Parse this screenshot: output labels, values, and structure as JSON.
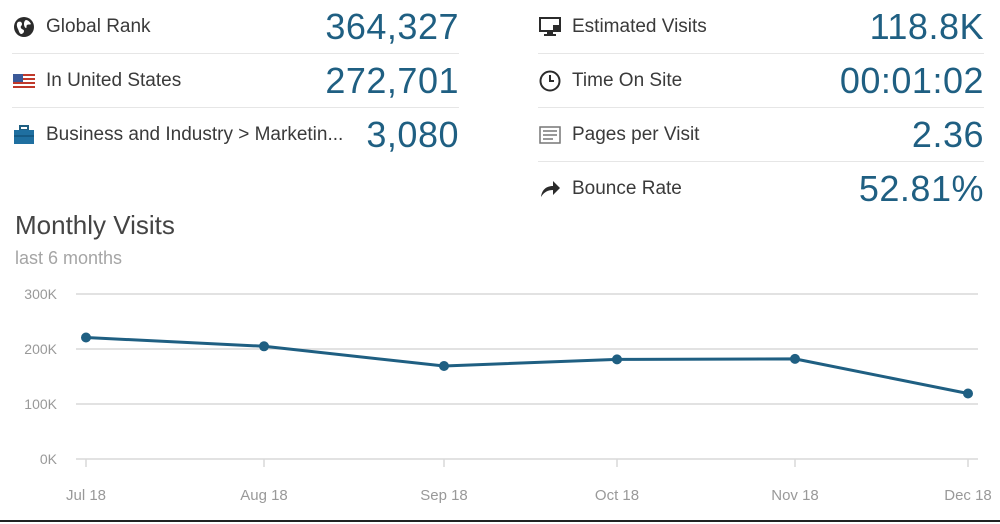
{
  "stats_left": [
    {
      "label": "Global Rank",
      "value": "364,327",
      "icon": "globe-icon"
    },
    {
      "label": "In United States",
      "value": "272,701",
      "icon": "us-flag-icon"
    },
    {
      "label": "Business and Industry > Marketin...",
      "value": "3,080",
      "icon": "briefcase-icon"
    }
  ],
  "stats_right": [
    {
      "label": "Estimated Visits",
      "value": "118.8K",
      "icon": "monitor-icon"
    },
    {
      "label": "Time On Site",
      "value": "00:01:02",
      "icon": "clock-icon"
    },
    {
      "label": "Pages per Visit",
      "value": "2.36",
      "icon": "pages-icon"
    },
    {
      "label": "Bounce Rate",
      "value": "52.81%",
      "icon": "bounce-arrow-icon"
    }
  ],
  "colors": {
    "accent": "#1f5f82",
    "grid": "#d9d9d9",
    "axis_text": "#999999"
  },
  "chart_data": {
    "type": "line",
    "title": "Monthly Visits",
    "subtitle": "last 6 months",
    "categories": [
      "Jul 18",
      "Aug 18",
      "Sep 18",
      "Oct 18",
      "Nov 18",
      "Dec 18"
    ],
    "series": [
      {
        "name": "Visits",
        "values": [
          221000,
          205000,
          169000,
          181000,
          182000,
          119000
        ]
      }
    ],
    "yticks": [
      "0K",
      "100K",
      "200K",
      "300K"
    ],
    "ylim": [
      0,
      300000
    ],
    "grid": true
  }
}
